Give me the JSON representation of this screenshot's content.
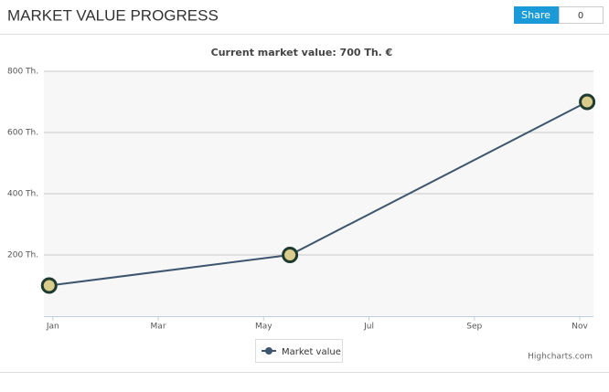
{
  "header": {
    "title": "MARKET VALUE PROGRESS",
    "share": "Share",
    "share_count": "0"
  },
  "chart_data": {
    "type": "line",
    "title": "Current market value: 700 Th. €",
    "x": [
      -0.07,
      4.5,
      10.14
    ],
    "xlim": [
      -0.17,
      10.26
    ],
    "xticks": [
      {
        "value": 0,
        "label": "Jan"
      },
      {
        "value": 2,
        "label": "Mar"
      },
      {
        "value": 4,
        "label": "May"
      },
      {
        "value": 6,
        "label": "Jul"
      },
      {
        "value": 8,
        "label": "Sep"
      },
      {
        "value": 10,
        "label": "Nov"
      }
    ],
    "ylim": [
      0,
      800
    ],
    "yticks": [
      {
        "value": 200,
        "label": "200 Th."
      },
      {
        "value": 400,
        "label": "400 Th."
      },
      {
        "value": 600,
        "label": "600 Th."
      },
      {
        "value": 800,
        "label": "800 Th."
      }
    ],
    "series": [
      {
        "name": "Market value",
        "color": "#3d566e",
        "values": [
          100,
          200,
          700
        ]
      }
    ],
    "grid": true,
    "credits": "Highcharts.com"
  }
}
